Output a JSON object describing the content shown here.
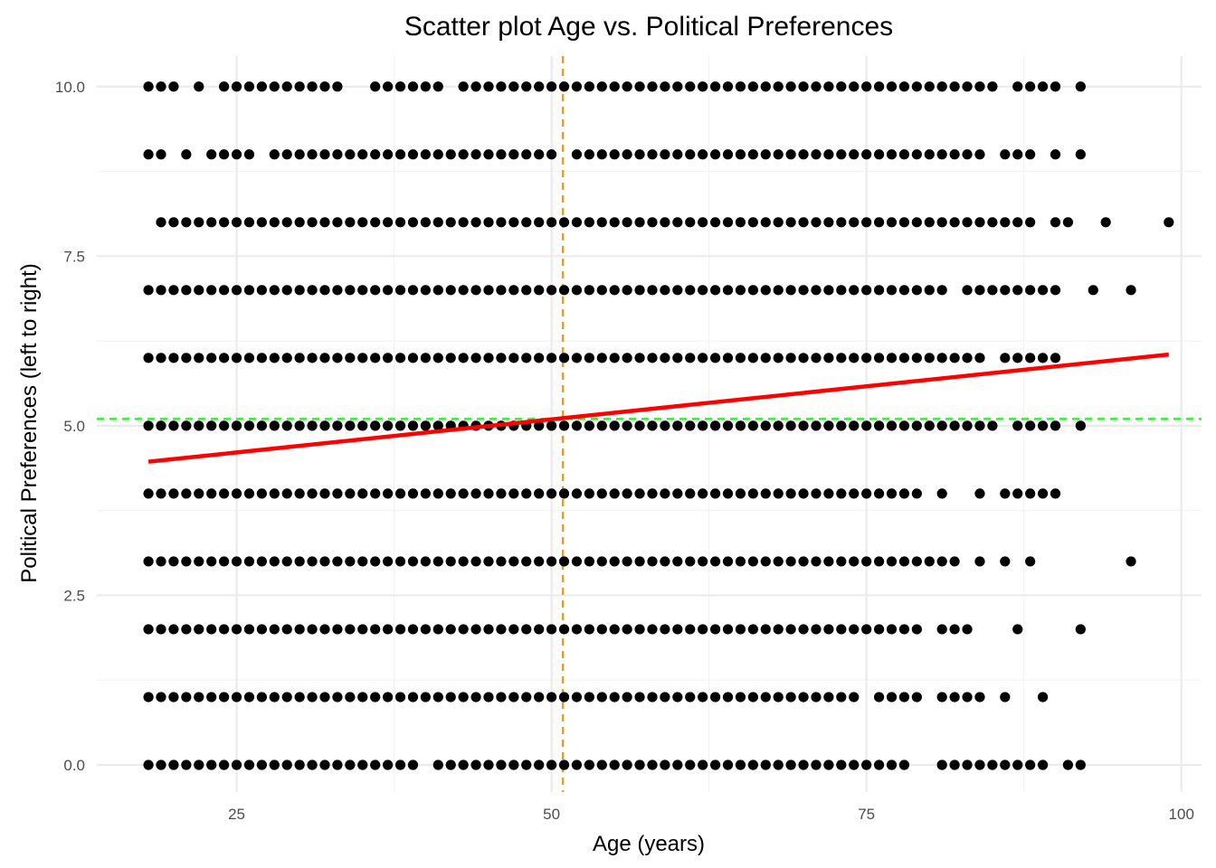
{
  "chart_data": {
    "type": "scatter",
    "title": "Scatter plot Age vs. Political Preferences",
    "xlabel": "Age (years)",
    "ylabel": "Political Preferences (left to right)",
    "xlim": [
      13.9,
      101.6
    ],
    "ylim": [
      -0.4,
      10.45
    ],
    "x_ticks": [
      25,
      50,
      75,
      100
    ],
    "x_tick_labels": [
      "25",
      "50",
      "75",
      "100"
    ],
    "y_ticks": [
      0,
      2.5,
      5,
      7.5,
      10
    ],
    "y_tick_labels": [
      "0.0",
      "2.5",
      "5.0",
      "7.5",
      "10.0"
    ],
    "grid": true,
    "legend": "none",
    "colors": {
      "points": "#000000",
      "regression": "#ff0000",
      "mean_age_line": "#f39c12",
      "mean_pref_line": "#33ee33",
      "grid_major": "#ebebeb",
      "grid_minor": "#f3f3f3"
    },
    "regression_line": {
      "x": [
        18,
        99
      ],
      "y": [
        4.47,
        6.05
      ]
    },
    "mean_age": 50.9,
    "mean_preference": 5.1,
    "points_by_level": [
      {
        "y": 0,
        "x": "18-39,41-78,81-89,91-92"
      },
      {
        "y": 1,
        "x": "18-74,76-79,81-84,86,89"
      },
      {
        "y": 2,
        "x": "18-79,81-83,87,92"
      },
      {
        "y": 3,
        "x": "18-82,84,86,88,96"
      },
      {
        "y": 4,
        "x": "18-79,81,84,86-90"
      },
      {
        "y": 5,
        "x": "18-85,87-90,92"
      },
      {
        "y": 6,
        "x": "18-84,86-90"
      },
      {
        "y": 7,
        "x": "18-81,83-90,93,96"
      },
      {
        "y": 8,
        "x": "19-88,90-91,94,99"
      },
      {
        "y": 9,
        "x": "18-19,21,23-26,28-50,52-84,86-88,90,92"
      },
      {
        "y": 10,
        "x": "18-20,22,24-33,36-41,43-85,87-90,92"
      }
    ]
  }
}
